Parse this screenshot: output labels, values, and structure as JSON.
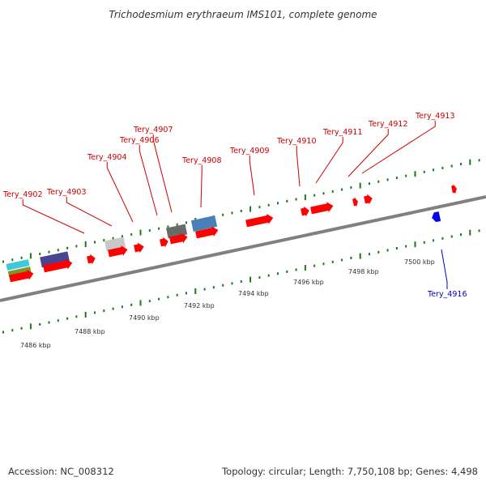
{
  "title": "Trichodesmium erythraeum IMS101, complete genome",
  "colors": {
    "forward_gene": "#ff0000",
    "reverse_gene": "#0000ee",
    "forward_label": "#cc0000",
    "reverse_label": "#0000cc",
    "backbone": "#808080",
    "tick": "#1a7a1a",
    "cds_cyan": "#3ec8d8",
    "cds_olive": "#7a9a28",
    "cds_purple": "#4a4590",
    "cds_silver": "#c8c8c8",
    "cds_darkgray": "#6a6a6a",
    "cds_steelblue": "#4a80b8"
  },
  "forward_labels": [
    {
      "id": "Tery_4902",
      "text": "Tery_4902"
    },
    {
      "id": "Tery_4903",
      "text": "Tery_4903"
    },
    {
      "id": "Tery_4904",
      "text": "Tery_4904"
    },
    {
      "id": "Tery_4906",
      "text": "Tery_4906"
    },
    {
      "id": "Tery_4907",
      "text": "Tery_4907"
    },
    {
      "id": "Tery_4908",
      "text": "Tery_4908"
    },
    {
      "id": "Tery_4909",
      "text": "Tery_4909"
    },
    {
      "id": "Tery_4910",
      "text": "Tery_4910"
    },
    {
      "id": "Tery_4911",
      "text": "Tery_4911"
    },
    {
      "id": "Tery_4912",
      "text": "Tery_4912"
    },
    {
      "id": "Tery_4913",
      "text": "Tery_4913"
    }
  ],
  "reverse_labels": [
    {
      "id": "Tery_4916",
      "text": "Tery_4916"
    }
  ],
  "kbp_ticks": [
    "7486 kbp",
    "7488 kbp",
    "7490 kbp",
    "7492 kbp",
    "7494 kbp",
    "7496 kbp",
    "7498 kbp",
    "7500 kbp"
  ],
  "footer": {
    "accession": "Accession: NC_008312",
    "summary": "Topology: circular; Length: 7,750,108 bp; Genes: 4,498"
  }
}
